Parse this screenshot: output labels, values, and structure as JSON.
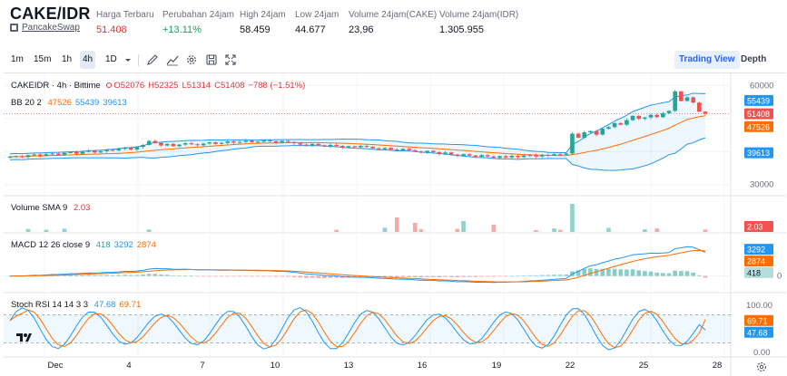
{
  "header": {
    "pair": "CAKE/IDR",
    "dex": "PancakeSwap",
    "stats": [
      {
        "label": "Harga Terbaru",
        "value": "51.408",
        "color": "red"
      },
      {
        "label": "Perubahan 24jam",
        "value": "+13.11%",
        "color": "green"
      },
      {
        "label": "High 24jam",
        "value": "58.459",
        "color": "default"
      },
      {
        "label": "Low 24jam",
        "value": "44.677",
        "color": "default"
      },
      {
        "label": "Volume 24jam(CAKE)",
        "value": "23,96",
        "color": "default"
      },
      {
        "label": "Volume 24jam(IDR)",
        "value": "1.305.955",
        "color": "default"
      }
    ]
  },
  "toolbar": {
    "intervals": [
      "1m",
      "15m",
      "1h",
      "4h",
      "1D"
    ],
    "active_interval": "4h",
    "icons": [
      "chevron-down-icon",
      "pencil-icon",
      "indicator-icon",
      "gear-icon",
      "save-icon",
      "fullscreen-icon"
    ],
    "views": {
      "trading": "Trading View",
      "depth": "Depth"
    }
  },
  "legend": {
    "symbol": "CAKEIDR · 4h · Bittime",
    "ohlc": {
      "o": "O52076",
      "h": "H52325",
      "l": "L51314",
      "c": "C51408",
      "chg": "−788 (−1.51%)"
    },
    "bb": {
      "name": "BB 20 2",
      "basis": "47526",
      "upper": "55439",
      "lower": "39613"
    },
    "vol": {
      "name": "Volume SMA 9",
      "value": "2.03"
    },
    "macd": {
      "name": "MACD 12 26 close 9",
      "hist": "418",
      "macd": "3292",
      "signal": "2874"
    },
    "stoch": {
      "name": "Stoch RSI 14 14 3 3",
      "k": "47.68",
      "d": "69.71"
    }
  },
  "axes": {
    "price_ticks": [
      "60000",
      "30000"
    ],
    "macd_ticks": [
      "2000",
      "0"
    ],
    "stoch_ticks": [
      "100.00",
      "0.00"
    ],
    "x_labels": [
      "Dec",
      "4",
      "7",
      "10",
      "13",
      "16",
      "19",
      "22",
      "25",
      "28"
    ]
  },
  "price_badges": {
    "upper": "55439",
    "last": "51408",
    "basis": "47526",
    "lower": "39613",
    "vol": "2.03",
    "macd": "3292",
    "signal": "2874",
    "hist": "418",
    "k": "47.68",
    "d": "69.71"
  },
  "colors": {
    "up": "#26a69a",
    "down": "#ef5350",
    "bb_band": "#2196f3",
    "basis": "#ff6d00",
    "macd_line": "#2196f3",
    "signal_line": "#ff6d00",
    "stoch_k": "#2196f3",
    "stoch_d": "#ff6d00"
  },
  "chart_data": {
    "type": "candlestick",
    "title": "CAKEIDR · 4h · Bittime",
    "price_range": [
      28000,
      62000
    ],
    "x_labels": [
      "Dec",
      "4",
      "7",
      "10",
      "13",
      "16",
      "19",
      "22",
      "25",
      "28"
    ],
    "close": [
      38400,
      38600,
      38300,
      38900,
      39100,
      38700,
      39200,
      39400,
      39000,
      39600,
      39800,
      39300,
      39900,
      40200,
      39700,
      40100,
      40500,
      40300,
      40800,
      41200,
      40600,
      41400,
      42000,
      43200,
      42600,
      41800,
      42300,
      41600,
      42100,
      42500,
      42200,
      41900,
      42400,
      42800,
      42300,
      42600,
      43100,
      42700,
      42900,
      43300,
      42800,
      43000,
      43400,
      43100,
      42700,
      43200,
      42900,
      42500,
      42100,
      41800,
      42300,
      41900,
      41500,
      42000,
      41700,
      41200,
      41600,
      41300,
      41700,
      41400,
      41000,
      40700,
      41100,
      40600,
      40300,
      40800,
      40400,
      40000,
      39700,
      40200,
      39800,
      39300,
      39700,
      39100,
      38700,
      39200,
      38800,
      38400,
      38900,
      38500,
      38100,
      38600,
      38200,
      38700,
      38300,
      38800,
      38900,
      38500,
      39000,
      38800,
      39200,
      39000,
      39400,
      45400,
      44200,
      45800,
      46200,
      45100,
      46900,
      47400,
      48600,
      48100,
      49500,
      50800,
      49900,
      50300,
      51100,
      50400,
      51600,
      52300,
      58200,
      55300,
      56400,
      54800,
      52076,
      51408
    ]
  }
}
